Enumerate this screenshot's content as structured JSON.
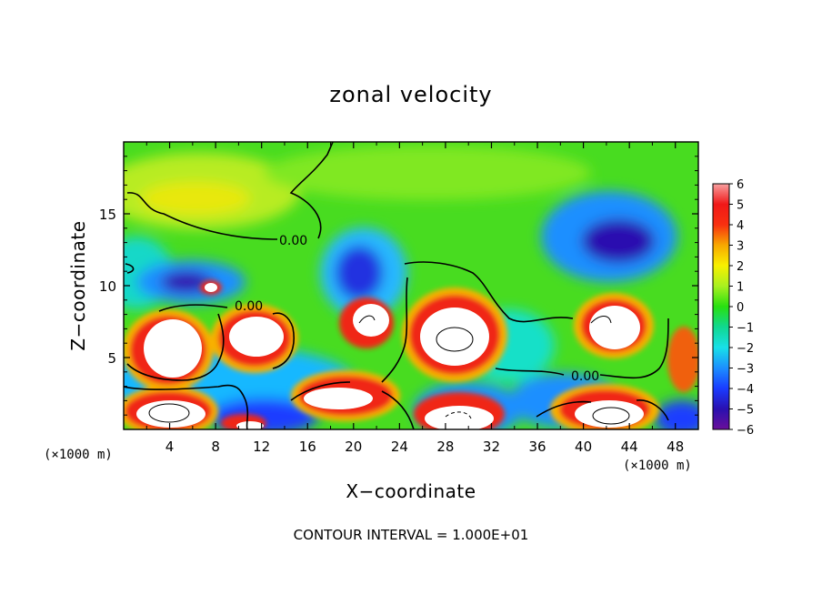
{
  "chart_data": {
    "type": "heatmap",
    "title": "zonal velocity",
    "xlabel": "X−coordinate",
    "ylabel": "Z−coordinate",
    "x_unit": "(×1000 m)",
    "x_unit_right": "(×1000 m)",
    "xlim": [
      0,
      50
    ],
    "ylim": [
      0,
      20
    ],
    "x_ticks": [
      4,
      8,
      12,
      16,
      20,
      24,
      28,
      32,
      36,
      40,
      44,
      48
    ],
    "x_tick_labels": [
      "4",
      "8",
      "12",
      "16",
      "20",
      "24",
      "28",
      "32",
      "36",
      "40",
      "44",
      "48"
    ],
    "y_ticks": [
      5,
      10,
      15
    ],
    "y_tick_labels": [
      "5",
      "10",
      "15"
    ],
    "colorbar": {
      "min": -6,
      "max": 6,
      "ticks": [
        6,
        5,
        4,
        3,
        2,
        1,
        0,
        -1,
        -2,
        -3,
        -4,
        -5,
        -6
      ],
      "tick_labels": [
        "6",
        "5",
        "4",
        "3",
        "2",
        "1",
        "0",
        "−1",
        "−2",
        "−3",
        "−4",
        "−5",
        "−6"
      ]
    },
    "contour_labels": [
      "0.00",
      "0.00",
      "0.00"
    ],
    "footnote": "CONTOUR INTERVAL = 1.000E+01",
    "features": [
      {
        "kind": "positive-core",
        "x": 3.5,
        "z": 6.0,
        "value": 6
      },
      {
        "kind": "positive-core",
        "x": 11.5,
        "z": 6.5,
        "value": 6
      },
      {
        "kind": "positive-core",
        "x": 28.5,
        "z": 6.2,
        "value": 6
      },
      {
        "kind": "positive-core",
        "x": 42.5,
        "z": 6.7,
        "value": 6
      },
      {
        "kind": "positive-core",
        "x": 4.0,
        "z": 1.2,
        "value": 6
      },
      {
        "kind": "positive-core",
        "x": 21.0,
        "z": 2.0,
        "value": 6
      },
      {
        "kind": "positive-core",
        "x": 29.5,
        "z": 1.0,
        "value": 6
      },
      {
        "kind": "positive-core",
        "x": 43.0,
        "z": 1.2,
        "value": 5
      },
      {
        "kind": "positive-region",
        "x": 6.0,
        "z": 16.3,
        "value": 2.5
      },
      {
        "kind": "negative-core",
        "x": 5.5,
        "z": 10.2,
        "value": -5
      },
      {
        "kind": "negative-core",
        "x": 20.5,
        "z": 10.5,
        "value": -4.5
      },
      {
        "kind": "negative-core",
        "x": 43.5,
        "z": 13.0,
        "value": -5.5
      }
    ]
  }
}
